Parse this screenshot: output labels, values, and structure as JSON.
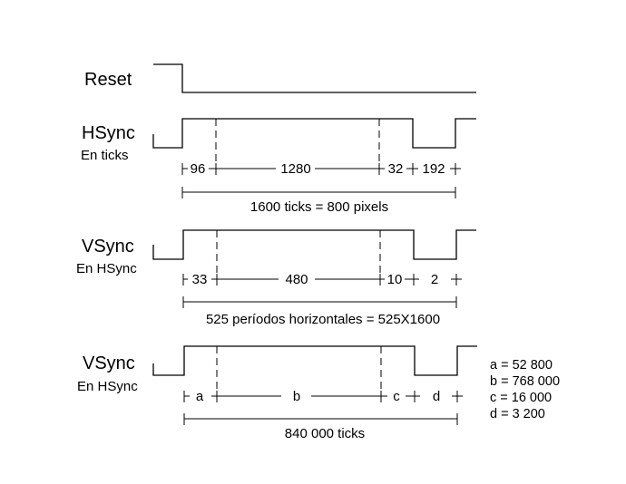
{
  "labels": {
    "reset": "Reset",
    "hsync": "HSync",
    "hsync_sub": "En ticks",
    "vsync1": "VSync",
    "vsync1_sub": "En HSync",
    "vsync2": "VSync",
    "vsync2_sub": "En HSync"
  },
  "hsync_segments": [
    "96",
    "1280",
    "32",
    "192"
  ],
  "hsync_total": "1600 ticks = 800 pixels",
  "vsync1_segments": [
    "33",
    "480",
    "10",
    "2"
  ],
  "vsync1_total": "525 períodos horizontales = 525X1600",
  "vsync2_segments": [
    "a",
    "b",
    "c",
    "d"
  ],
  "vsync2_total": "840 000 ticks",
  "legend": [
    "a = 52 800",
    "b = 768 000",
    "c = 16 000",
    "d = 3 200"
  ]
}
